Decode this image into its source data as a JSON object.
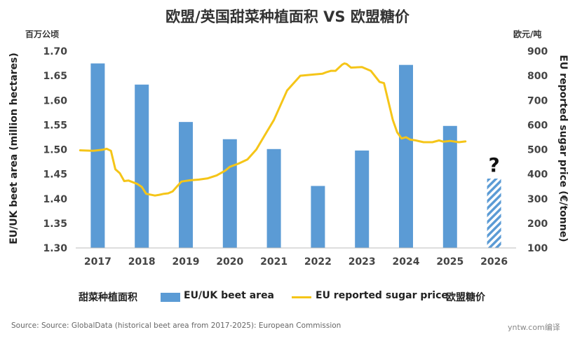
{
  "title": "欧盟/英国甜菜种植面积  VS  欧盟糖价",
  "unit_left": "百万公顷",
  "unit_right": "欧元/吨",
  "colors": {
    "bar": "#5b9bd5",
    "line": "#f5c518",
    "hatch": "#5b9bd5"
  },
  "legend": {
    "cn_bar": "甜菜种植面积",
    "bar_label": "EU/UK beet area",
    "line_label": "EU reported sugar price",
    "cn_line": "欧盟糖价"
  },
  "source": "Source: Source: GlobalData (historical beet area from 2017-2025): European Commission",
  "watermark": "yntw.com编译",
  "chart_data": {
    "type": "bar",
    "categories": [
      "2017",
      "2018",
      "2019",
      "2020",
      "2021",
      "2022",
      "2023",
      "2024",
      "2025",
      "2026"
    ],
    "series": [
      {
        "name": "EU/UK beet area",
        "axis": "left",
        "values": [
          1.675,
          1.632,
          1.556,
          1.521,
          1.501,
          1.426,
          1.498,
          1.672,
          1.548,
          1.441
        ],
        "forecast_flags": [
          false,
          false,
          false,
          false,
          false,
          false,
          false,
          false,
          false,
          true
        ]
      },
      {
        "name": "EU reported sugar price",
        "axis": "right",
        "type": "line",
        "x": [
          2016.6,
          2016.9,
          2017.1,
          2017.2,
          2017.3,
          2017.4,
          2017.5,
          2017.6,
          2017.7,
          2017.9,
          2018.0,
          2018.1,
          2018.3,
          2018.4,
          2018.5,
          2018.6,
          2018.7,
          2018.8,
          2018.9,
          2019.1,
          2019.3,
          2019.5,
          2019.7,
          2019.9,
          2020.0,
          2020.2,
          2020.4,
          2020.6,
          2020.8,
          2021.0,
          2021.3,
          2021.6,
          2021.9,
          2022.1,
          2022.2,
          2022.3,
          2022.4,
          2022.55,
          2022.6,
          2022.65,
          2022.75,
          2023.0,
          2023.2,
          2023.4,
          2023.5,
          2023.7,
          2023.8,
          2023.9,
          2024.0,
          2024.1,
          2024.2,
          2024.3,
          2024.4,
          2024.6,
          2024.75,
          2024.85,
          2025.0,
          2025.2,
          2025.35
        ],
        "values": [
          497,
          495,
          499,
          503,
          495,
          420,
          404,
          372,
          374,
          360,
          348,
          320,
          313,
          316,
          320,
          322,
          330,
          350,
          370,
          375,
          378,
          383,
          395,
          415,
          430,
          443,
          460,
          500,
          560,
          620,
          740,
          800,
          805,
          808,
          815,
          820,
          820,
          845,
          850,
          848,
          833,
          835,
          820,
          775,
          770,
          620,
          570,
          545,
          550,
          540,
          538,
          534,
          530,
          530,
          537,
          532,
          535,
          530,
          533
        ],
        "note": "approximate readings off the price axis"
      }
    ],
    "annotations": [
      "?"
    ],
    "xlabel": "",
    "ylabel": "EU/UK beet area (million hectares)",
    "y2label": "EU reported sugar price (€/tonne)",
    "ylim": [
      1.3,
      1.7
    ],
    "y2lim": [
      100,
      900
    ],
    "yticks": [
      "1.30",
      "1.35",
      "1.40",
      "1.45",
      "1.50",
      "1.55",
      "1.60",
      "1.65",
      "1.70"
    ],
    "y2ticks": [
      "100",
      "200",
      "300",
      "400",
      "500",
      "600",
      "700",
      "800",
      "900"
    ],
    "grid": false,
    "legend_position": "bottom"
  }
}
